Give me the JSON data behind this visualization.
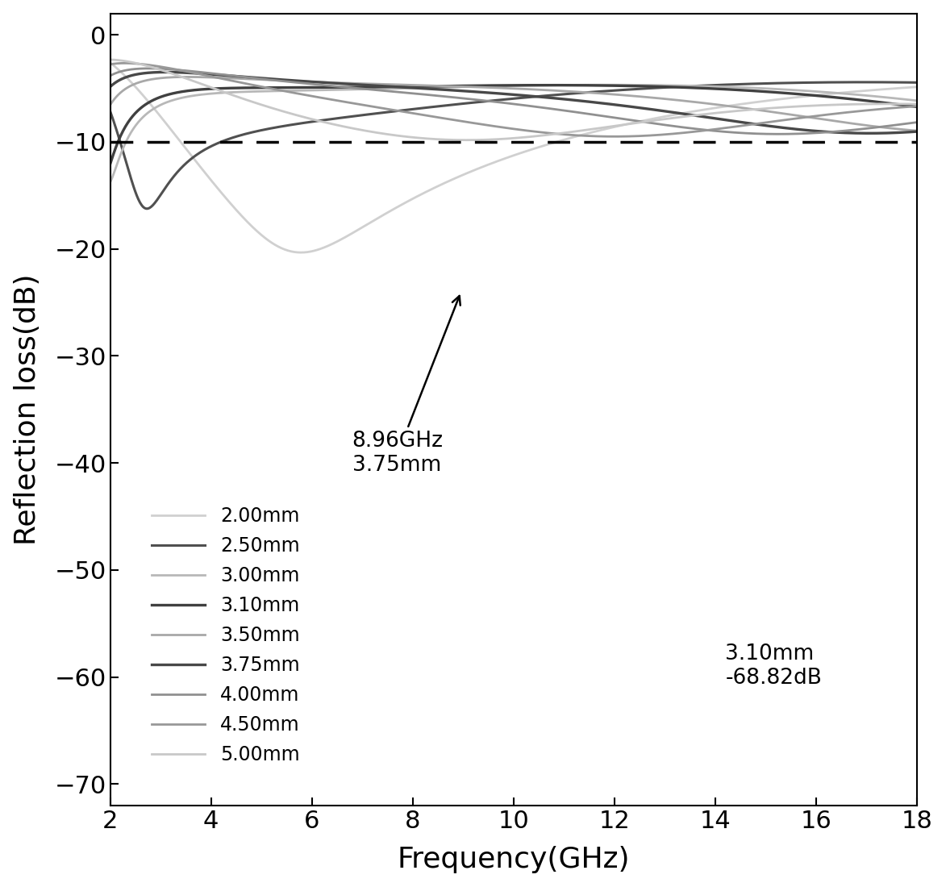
{
  "thicknesses": [
    2.0,
    2.5,
    3.0,
    3.1,
    3.5,
    3.75,
    4.0,
    4.5,
    5.0
  ],
  "colors": [
    "#d0d0d0",
    "#505050",
    "#b8b8b8",
    "#404040",
    "#a8a8a8",
    "#484848",
    "#909090",
    "#989898",
    "#c8c8c8"
  ],
  "linewidths": [
    2.0,
    2.2,
    2.0,
    2.4,
    2.0,
    2.4,
    2.0,
    2.0,
    2.0
  ],
  "freq_min": 2,
  "freq_max": 18,
  "rl_min": -72,
  "rl_max": 2,
  "dashed_line_y": -10,
  "xlabel": "Frequency(GHz)",
  "ylabel": "Reflection loss(dB)",
  "yticks": [
    0,
    -10,
    -20,
    -30,
    -40,
    -50,
    -60,
    -70
  ],
  "xticks": [
    2,
    4,
    6,
    8,
    10,
    12,
    14,
    16,
    18
  ],
  "labels": [
    "2.00mm",
    "2.50mm",
    "3.00mm",
    "3.10mm",
    "3.50mm",
    "3.75mm",
    "4.00mm",
    "4.50mm",
    "5.00mm"
  ]
}
